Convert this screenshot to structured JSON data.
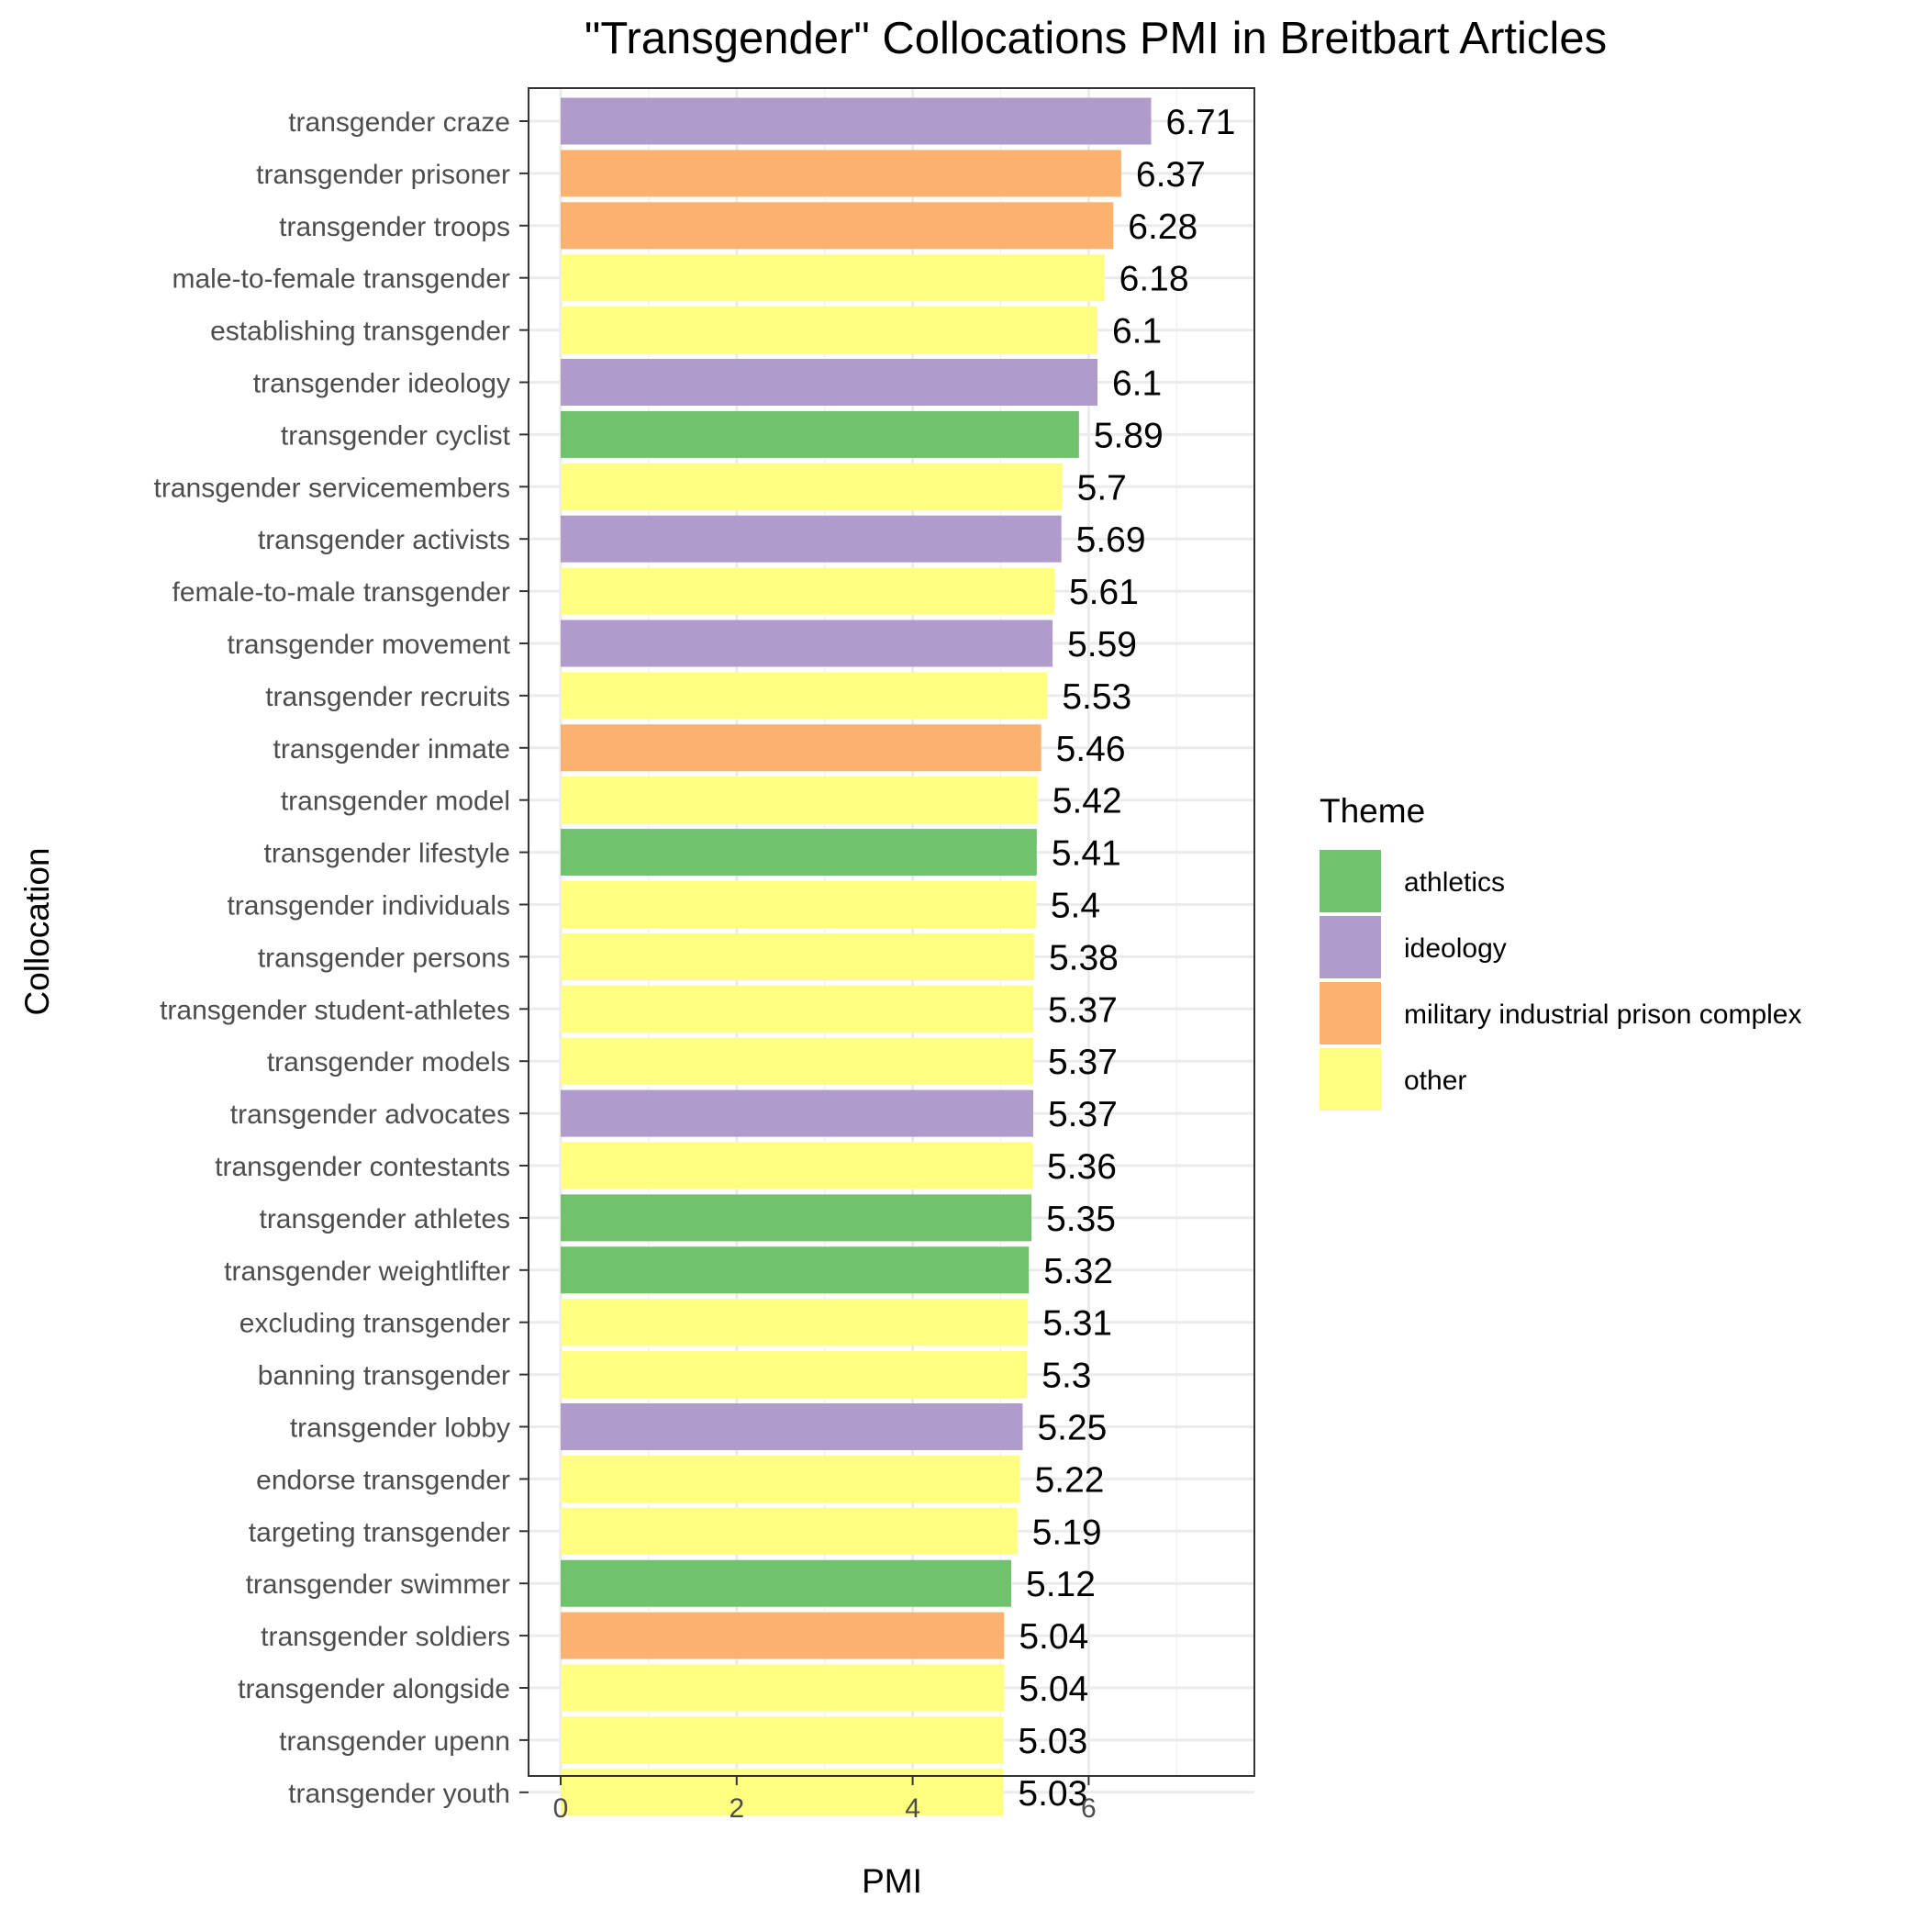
{
  "chart_data": {
    "type": "bar",
    "orientation": "horizontal",
    "title": "\"Transgender\" Collocations PMI in Breitbart Articles",
    "xlabel": "PMI",
    "ylabel": "Collocation",
    "xlim": [
      0,
      7.5
    ],
    "x_ticks": [
      0,
      2,
      4,
      6
    ],
    "grid": true,
    "legend_position": "right",
    "legend": {
      "title": "Theme",
      "items": [
        {
          "name": "athletics",
          "color": "#70c26c"
        },
        {
          "name": "ideology",
          "color": "#af9ccb"
        },
        {
          "name": "military industrial prison complex",
          "color": "#fbb170"
        },
        {
          "name": "other",
          "color": "#fffe80"
        }
      ]
    },
    "bars": [
      {
        "category": "transgender craze",
        "value": 6.71,
        "label": "6.71",
        "theme": "ideology"
      },
      {
        "category": "transgender prisoner",
        "value": 6.37,
        "label": "6.37",
        "theme": "military industrial prison complex"
      },
      {
        "category": "transgender troops",
        "value": 6.28,
        "label": "6.28",
        "theme": "military industrial prison complex"
      },
      {
        "category": "male-to-female transgender",
        "value": 6.18,
        "label": "6.18",
        "theme": "other"
      },
      {
        "category": "establishing transgender",
        "value": 6.1,
        "label": "6.1",
        "theme": "other"
      },
      {
        "category": "transgender ideology",
        "value": 6.1,
        "label": "6.1",
        "theme": "ideology"
      },
      {
        "category": "transgender cyclist",
        "value": 5.89,
        "label": "5.89",
        "theme": "athletics"
      },
      {
        "category": "transgender servicemembers",
        "value": 5.7,
        "label": "5.7",
        "theme": "other"
      },
      {
        "category": "transgender activists",
        "value": 5.69,
        "label": "5.69",
        "theme": "ideology"
      },
      {
        "category": "female-to-male transgender",
        "value": 5.61,
        "label": "5.61",
        "theme": "other"
      },
      {
        "category": "transgender movement",
        "value": 5.59,
        "label": "5.59",
        "theme": "ideology"
      },
      {
        "category": "transgender recruits",
        "value": 5.53,
        "label": "5.53",
        "theme": "other"
      },
      {
        "category": "transgender inmate",
        "value": 5.46,
        "label": "5.46",
        "theme": "military industrial prison complex"
      },
      {
        "category": "transgender model",
        "value": 5.42,
        "label": "5.42",
        "theme": "other"
      },
      {
        "category": "transgender lifestyle",
        "value": 5.41,
        "label": "5.41",
        "theme": "athletics"
      },
      {
        "category": "transgender individuals",
        "value": 5.4,
        "label": "5.4",
        "theme": "other"
      },
      {
        "category": "transgender persons",
        "value": 5.38,
        "label": "5.38",
        "theme": "other"
      },
      {
        "category": "transgender student-athletes",
        "value": 5.37,
        "label": "5.37",
        "theme": "other"
      },
      {
        "category": "transgender models",
        "value": 5.37,
        "label": "5.37",
        "theme": "other"
      },
      {
        "category": "transgender advocates",
        "value": 5.37,
        "label": "5.37",
        "theme": "ideology"
      },
      {
        "category": "transgender contestants",
        "value": 5.36,
        "label": "5.36",
        "theme": "other"
      },
      {
        "category": "transgender athletes",
        "value": 5.35,
        "label": "5.35",
        "theme": "athletics"
      },
      {
        "category": "transgender weightlifter",
        "value": 5.32,
        "label": "5.32",
        "theme": "athletics"
      },
      {
        "category": "excluding transgender",
        "value": 5.31,
        "label": "5.31",
        "theme": "other"
      },
      {
        "category": "banning transgender",
        "value": 5.3,
        "label": "5.3",
        "theme": "other"
      },
      {
        "category": "transgender lobby",
        "value": 5.25,
        "label": "5.25",
        "theme": "ideology"
      },
      {
        "category": "endorse transgender",
        "value": 5.22,
        "label": "5.22",
        "theme": "other"
      },
      {
        "category": "targeting transgender",
        "value": 5.19,
        "label": "5.19",
        "theme": "other"
      },
      {
        "category": "transgender swimmer",
        "value": 5.12,
        "label": "5.12",
        "theme": "athletics"
      },
      {
        "category": "transgender soldiers",
        "value": 5.04,
        "label": "5.04",
        "theme": "military industrial prison complex"
      },
      {
        "category": "transgender alongside",
        "value": 5.04,
        "label": "5.04",
        "theme": "other"
      },
      {
        "category": "transgender upenn",
        "value": 5.03,
        "label": "5.03",
        "theme": "other"
      },
      {
        "category": "transgender youth",
        "value": 5.03,
        "label": "5.03",
        "theme": "other"
      }
    ]
  }
}
